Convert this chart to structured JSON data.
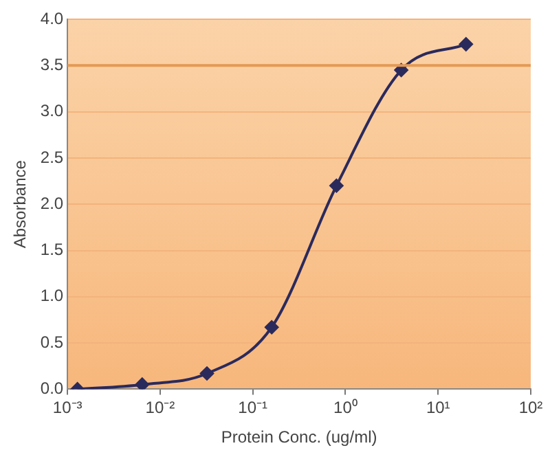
{
  "chart_data": {
    "type": "line",
    "xlabel": "Protein Conc. (ug/ml)",
    "ylabel": "Absorbance",
    "x": [
      0.00128,
      0.0064,
      0.032,
      0.16,
      0.8,
      4,
      20
    ],
    "series": [
      {
        "color": "#2b2a5c",
        "values": [
          0.0,
          0.05,
          0.17,
          0.67,
          2.2,
          3.45,
          3.73
        ]
      }
    ],
    "log": "x",
    "xlim": [
      0.001,
      100
    ],
    "xticks": [
      {
        "value": 0.001,
        "label": "10⁻³"
      },
      {
        "value": 0.01,
        "label": "10⁻²"
      },
      {
        "value": 0.1,
        "label": "10⁻¹"
      },
      {
        "value": 1,
        "label": "10⁰"
      },
      {
        "value": 10,
        "label": "10¹"
      },
      {
        "value": 100,
        "label": "10²"
      }
    ],
    "ylim": [
      0,
      4
    ],
    "yticks": [
      {
        "value": 0,
        "label": "0.0"
      },
      {
        "value": 0.5,
        "label": "0.5"
      },
      {
        "value": 1,
        "label": "1.0"
      },
      {
        "value": 1.5,
        "label": "1.5"
      },
      {
        "value": 2,
        "label": "2.0"
      },
      {
        "value": 2.5,
        "label": "2.5"
      },
      {
        "value": 3,
        "label": "3.0"
      },
      {
        "value": 3.5,
        "label": "3.5"
      },
      {
        "value": 4,
        "label": "4.0"
      }
    ],
    "ref_lines": [
      {
        "axis": "y",
        "value": 3.5,
        "color": "#e39a55"
      }
    ],
    "grid": "y",
    "legend": false,
    "marker": "diamond",
    "line_style": "solid"
  }
}
